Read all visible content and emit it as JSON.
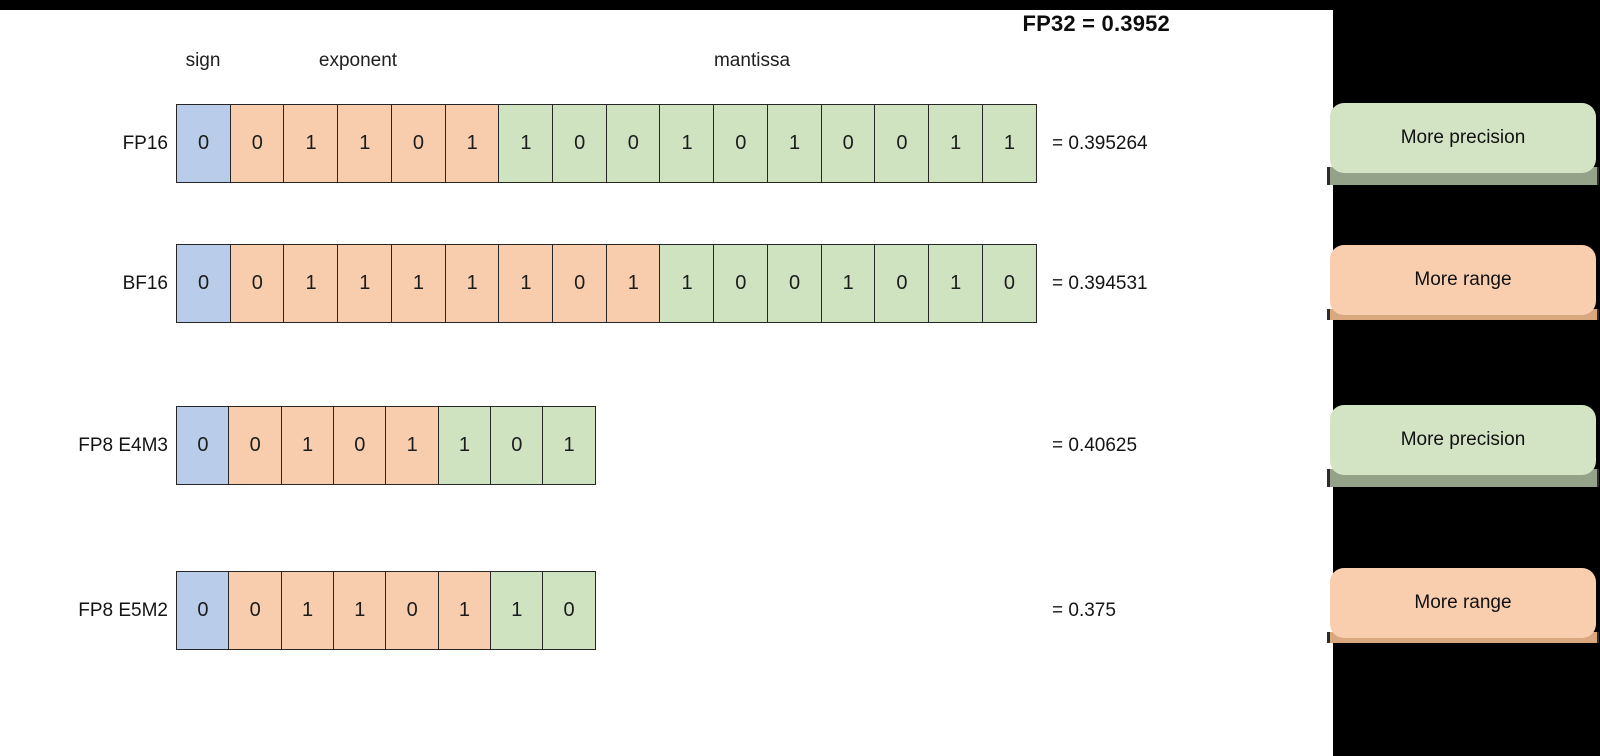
{
  "title": "FP32 = 0.3952",
  "field_labels": {
    "sign": "sign",
    "exponent": "exponent",
    "mantissa": "mantissa"
  },
  "colors": {
    "sign_cell": "#B9CCE9",
    "exponent_cell": "#F8CDAD",
    "mantissa_cell": "#CFE3C0",
    "cell_border": "#262626",
    "badge_precision": "#D3E4C5",
    "badge_precision_shadow": "#95A28A",
    "badge_range": "#F9CEAF",
    "badge_range_shadow": "#D9A87E",
    "frame_black": "#000000"
  },
  "rows": [
    {
      "label": "FP16",
      "sign": [
        "0"
      ],
      "exponent": [
        "0",
        "1",
        "1",
        "0",
        "1"
      ],
      "mantissa": [
        "1",
        "0",
        "0",
        "1",
        "0",
        "1",
        "0",
        "0",
        "1",
        "1"
      ],
      "value_label": "= 0.395264"
    },
    {
      "label": "BF16",
      "sign": [
        "0"
      ],
      "exponent": [
        "0",
        "1",
        "1",
        "1",
        "1",
        "1",
        "0",
        "1"
      ],
      "mantissa": [
        "1",
        "0",
        "0",
        "1",
        "0",
        "1",
        "0"
      ],
      "value_label": "= 0.394531"
    },
    {
      "label": "FP8 E4M3",
      "sign": [
        "0"
      ],
      "exponent": [
        "0",
        "1",
        "0",
        "1"
      ],
      "mantissa": [
        "1",
        "0",
        "1"
      ],
      "value_label": "= 0.40625"
    },
    {
      "label": "FP8 E5M2",
      "sign": [
        "0"
      ],
      "exponent": [
        "0",
        "1",
        "1",
        "0",
        "1"
      ],
      "mantissa": [
        "1",
        "0"
      ],
      "value_label": "= 0.375"
    }
  ],
  "badges": [
    {
      "label": "More precision",
      "type": "precision"
    },
    {
      "label": "More range",
      "type": "range"
    },
    {
      "label": "More precision",
      "type": "precision"
    },
    {
      "label": "More range",
      "type": "range"
    }
  ]
}
